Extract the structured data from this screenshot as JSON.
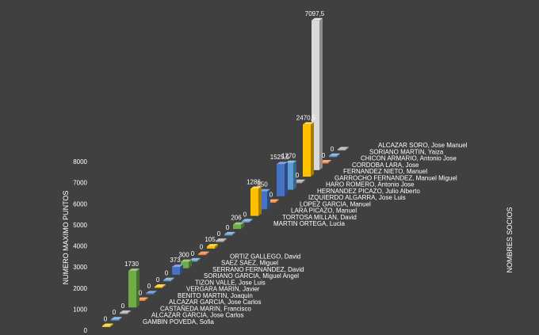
{
  "chart_data": {
    "type": "bar",
    "style": "3d-column",
    "background_color": "#404040",
    "text_color": "#ffffff",
    "ylabel": "NUMERO MAXIMO PUNTOS",
    "zlabel": "NOMBRES SOCIOS",
    "ylim": [
      0,
      8000
    ],
    "yticks": [
      "0",
      "1000",
      "2000",
      "3000",
      "4000",
      "5000",
      "6000",
      "7000",
      "8000"
    ],
    "categories": [
      "GAMBIN POVEDA, Sofia",
      "ALCAZAR GARCIA, Jose Carlos",
      "CASTAÑEDA MARIN, Francisco",
      "ALCAZAR GARCIA, Jose Carlos",
      "BENITO MARTIN, Joaquin",
      "VERGARA MARIN, Javier",
      "TIZON VALLE, Jose Luis",
      "SORIANO GARCIA, Miguel Angel",
      "SERRANO FERNANDEZ, David",
      "SAEZ SAEZ, Miguel",
      "ORTIZ GALLEGO, David",
      "",
      "",
      "",
      "",
      "MARTIN ORTEGA, Lucia",
      "TORTOSA MILLAN, David",
      "LARA PICAZO, Manuel",
      "LOPEZ GARCIA, Manuel",
      "IZQUIERDO ALGARRA, Jose Luis",
      "HERNANDEZ PICAZO, Julio Alberto",
      "HARO ROMERO, Antonio Jose",
      "GARROCHO FERNANDEZ, Manuel Miguel",
      "FERNANDEZ NIETO, Manuel",
      "CORDOBA LARA, Jose",
      "CHICON ARMARIO, Antonio Jose",
      "SORIANO MARTIN, Yaiza",
      "ALCAZAR SORO, Jose Manuel"
    ],
    "values": [
      0,
      0,
      0,
      1730,
      0,
      0,
      0,
      0,
      373,
      300,
      0,
      0,
      105,
      0,
      0,
      206,
      0,
      1286,
      850,
      0,
      1525.5,
      1270,
      0,
      2470.5,
      7097.5,
      0,
      0,
      0
    ],
    "value_labels": [
      "0",
      "0",
      "0",
      "1730",
      "0",
      "0",
      "0",
      "0",
      "373",
      "300",
      "0",
      "0",
      "105",
      "0",
      "0",
      "206",
      "0",
      "1286",
      "850",
      "0",
      "1525,5",
      "1270",
      "0",
      "2470,5",
      "7097,5",
      "0",
      "0",
      ""
    ],
    "colors": [
      "#f2c314",
      "#5b9bd5",
      "#a5a5a5",
      "#70ad47",
      "#ed7d31",
      "#4472c4",
      "#ffc000",
      "#5b9bd5",
      "#4472c4",
      "#70ad47",
      "#5b9bd5",
      "#ed7d31",
      "#ffc000",
      "#a5a5a5",
      "#5b9bd5",
      "#70ad47",
      "#5b9bd5",
      "#ffc000",
      "#4472c4",
      "#ed7d31",
      "#4472c4",
      "#5b9bd5",
      "#a5a5a5",
      "#ffc000",
      "#d9d9d9",
      "#ed7d31",
      "#5b9bd5",
      "#a5a5a5"
    ],
    "grid": false,
    "legend": "none"
  }
}
